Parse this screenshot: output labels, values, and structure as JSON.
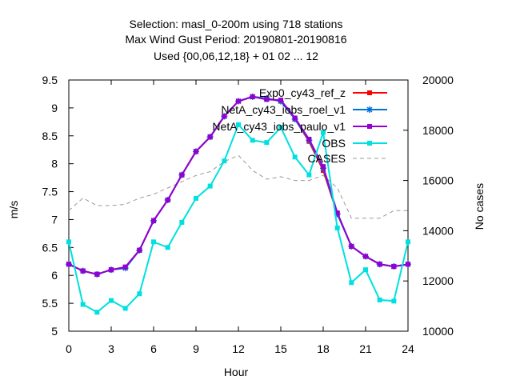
{
  "chart_data": {
    "type": "line",
    "title_lines": [
      "Selection: masl_0-200m using   718 stations",
      "Max Wind Gust   Period: 20190801-20190816",
      "Used {00,06,12,18} + 01 02 ... 12"
    ],
    "xlabel": "Hour",
    "ylabel": "m/s",
    "y2label": "No cases",
    "xlim": [
      0,
      24
    ],
    "ylim": [
      5,
      9.5
    ],
    "y2lim": [
      10000,
      20000
    ],
    "xticks": [
      "0",
      "3",
      "6",
      "9",
      "12",
      "15",
      "18",
      "21",
      "24"
    ],
    "yticks": [
      "5",
      "5.5",
      "6",
      "6.5",
      "7",
      "7.5",
      "8",
      "8.5",
      "9",
      "9.5"
    ],
    "y2ticks": [
      "10000",
      "12000",
      "14000",
      "16000",
      "18000",
      "20000"
    ],
    "legend_position": "top-right",
    "grid": false,
    "x": [
      0,
      1,
      2,
      3,
      4,
      5,
      6,
      7,
      8,
      9,
      10,
      11,
      12,
      13,
      14,
      15,
      16,
      17,
      18,
      19,
      20,
      21,
      22,
      23,
      24
    ],
    "series": [
      {
        "name": "Exp0_cy43_ref_z",
        "color": "#ff0000",
        "marker": "square",
        "axis": "y",
        "values": [
          6.2,
          6.08,
          6.02,
          6.1,
          6.15,
          6.45,
          6.98,
          7.35,
          7.8,
          8.22,
          8.48,
          8.85,
          9.12,
          9.2,
          9.17,
          9.12,
          8.8,
          8.4,
          7.88,
          7.1,
          6.52,
          6.34,
          6.2,
          6.16,
          6.2
        ]
      },
      {
        "name": "NetA_cy43_iobs_roel_v1",
        "color": "#0072d6",
        "marker": "star",
        "axis": "y",
        "values": [
          6.2,
          6.08,
          6.02,
          6.1,
          6.13,
          6.45,
          6.98,
          7.35,
          7.8,
          8.22,
          8.48,
          8.85,
          9.12,
          9.2,
          9.17,
          9.12,
          8.8,
          8.42,
          7.92,
          7.1,
          6.52,
          6.34,
          6.2,
          6.16,
          6.2
        ]
      },
      {
        "name": "NetA_cy43_iobs_paulo_v1",
        "color": "#9400d3",
        "marker": "square",
        "axis": "y",
        "values": [
          6.2,
          6.08,
          6.02,
          6.1,
          6.15,
          6.45,
          6.98,
          7.35,
          7.8,
          8.22,
          8.48,
          8.85,
          9.12,
          9.2,
          9.15,
          9.14,
          8.82,
          8.44,
          7.95,
          7.12,
          6.52,
          6.34,
          6.2,
          6.16,
          6.2
        ]
      },
      {
        "name": "OBS",
        "color": "#00e0e0",
        "marker": "square",
        "axis": "y",
        "values": [
          6.6,
          5.48,
          5.34,
          5.55,
          5.41,
          5.67,
          6.6,
          6.5,
          6.95,
          7.38,
          7.6,
          8.05,
          8.7,
          8.42,
          8.38,
          8.65,
          8.12,
          7.8,
          8.56,
          6.85,
          5.87,
          6.1,
          5.56,
          5.54,
          6.6
        ]
      },
      {
        "name": "CASES",
        "color": "#999999",
        "marker": "none",
        "dashed": true,
        "axis": "y2",
        "values": [
          14800,
          15300,
          15000,
          15000,
          15050,
          15300,
          15450,
          15700,
          15950,
          16200,
          16350,
          16750,
          17000,
          16400,
          16050,
          16150,
          16000,
          16000,
          16200,
          15700,
          14500,
          14500,
          14500,
          14800,
          14800
        ]
      }
    ]
  }
}
